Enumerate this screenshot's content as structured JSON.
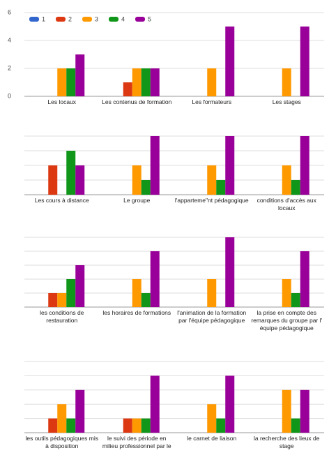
{
  "chart_data": [
    {
      "type": "bar",
      "categories": [
        "Les locaux",
        "Les contenus de formation",
        "Les formateurs",
        "Les stages"
      ],
      "series": [
        {
          "name": "1",
          "color": "#3366cc",
          "values": [
            0,
            0,
            0,
            0
          ]
        },
        {
          "name": "2",
          "color": "#dc3912",
          "values": [
            0,
            1,
            0,
            0
          ]
        },
        {
          "name": "3",
          "color": "#ff9900",
          "values": [
            2,
            2,
            2,
            2
          ]
        },
        {
          "name": "4",
          "color": "#109618",
          "values": [
            2,
            2,
            0,
            0
          ]
        },
        {
          "name": "5",
          "color": "#990099",
          "values": [
            3,
            2,
            5,
            5
          ]
        }
      ],
      "ylim": [
        0,
        6
      ],
      "yticks": [
        0,
        2,
        4,
        6
      ],
      "grid": true,
      "show_tick_labels": true,
      "legend": "top"
    },
    {
      "type": "bar",
      "categories": [
        "Les cours à distance",
        "Le groupe",
        "l'apparteme\"nt pédagogique",
        "conditions d'accès aux locaux"
      ],
      "series": [
        {
          "name": "1",
          "color": "#3366cc",
          "values": [
            0,
            0,
            0,
            0
          ]
        },
        {
          "name": "2",
          "color": "#dc3912",
          "values": [
            2,
            0,
            0,
            0
          ]
        },
        {
          "name": "3",
          "color": "#ff9900",
          "values": [
            0,
            2,
            2,
            2
          ]
        },
        {
          "name": "4",
          "color": "#109618",
          "values": [
            3,
            1,
            1,
            1
          ]
        },
        {
          "name": "5",
          "color": "#990099",
          "values": [
            2,
            4,
            4,
            4
          ]
        }
      ],
      "ylim": [
        0,
        4
      ],
      "yticks": [
        0,
        1,
        2,
        3,
        4
      ],
      "grid": true,
      "show_tick_labels": false
    },
    {
      "type": "bar",
      "categories": [
        "les conditions de restauration",
        "les horaires de formations",
        "l'animation de la formation par l'équipe pédagogique",
        "la prise en compte des remarques du groupe par l' équipe pédagogique"
      ],
      "series": [
        {
          "name": "1",
          "color": "#3366cc",
          "values": [
            0,
            0,
            0,
            0
          ]
        },
        {
          "name": "2",
          "color": "#dc3912",
          "values": [
            1,
            0,
            0,
            0
          ]
        },
        {
          "name": "3",
          "color": "#ff9900",
          "values": [
            1,
            2,
            2,
            2
          ]
        },
        {
          "name": "4",
          "color": "#109618",
          "values": [
            2,
            1,
            0,
            1
          ]
        },
        {
          "name": "5",
          "color": "#990099",
          "values": [
            3,
            4,
            5,
            4
          ]
        }
      ],
      "ylim": [
        0,
        5
      ],
      "yticks": [
        0,
        1,
        2,
        3,
        4,
        5
      ],
      "grid": true,
      "show_tick_labels": false
    },
    {
      "type": "bar",
      "categories": [
        "les outils pédagogiques mis à disposition",
        "le suivi des période en milieu professionnel par le",
        "le carnet de liaison",
        "la recherche des lieux de stage"
      ],
      "series": [
        {
          "name": "1",
          "color": "#3366cc",
          "values": [
            0,
            0,
            0,
            0
          ]
        },
        {
          "name": "2",
          "color": "#dc3912",
          "values": [
            1,
            1,
            0,
            0
          ]
        },
        {
          "name": "3",
          "color": "#ff9900",
          "values": [
            2,
            1,
            2,
            3
          ]
        },
        {
          "name": "4",
          "color": "#109618",
          "values": [
            1,
            1,
            1,
            1
          ]
        },
        {
          "name": "5",
          "color": "#990099",
          "values": [
            3,
            4,
            4,
            3
          ]
        }
      ],
      "ylim": [
        0,
        5
      ],
      "yticks": [
        0,
        1,
        2,
        3,
        4,
        5
      ],
      "grid": true,
      "show_tick_labels": false
    }
  ]
}
